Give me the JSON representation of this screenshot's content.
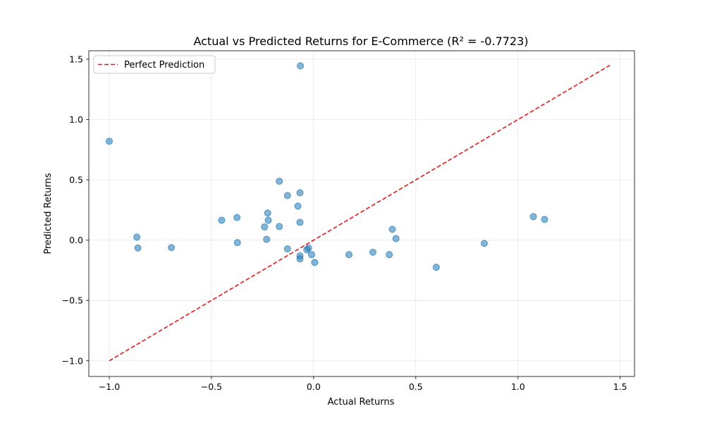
{
  "chart_data": {
    "type": "scatter",
    "title": "Actual vs Predicted Returns for E-Commerce (R² = -0.7723)",
    "xlabel": "Actual Returns",
    "ylabel": "Predicted Returns",
    "xlim": [
      -1.1,
      1.57
    ],
    "ylim": [
      -1.13,
      1.57
    ],
    "xticks": [
      -1.0,
      -0.5,
      0.0,
      0.5,
      1.0,
      1.5
    ],
    "xtick_labels": [
      "−1.0",
      "−0.5",
      "0.0",
      "0.5",
      "1.0",
      "1.5"
    ],
    "yticks": [
      -1.0,
      -0.5,
      0.0,
      0.5,
      1.0,
      1.5
    ],
    "ytick_labels": [
      "−1.0",
      "−0.5",
      "0.0",
      "0.5",
      "1.0",
      "1.5"
    ],
    "grid": true,
    "legend": {
      "position": "top-left",
      "entries": [
        "Perfect Prediction"
      ]
    },
    "reference_line": {
      "name": "Perfect Prediction",
      "color": "#e31a1c",
      "x": [
        -1.0,
        1.45
      ],
      "y": [
        -1.0,
        1.45
      ]
    },
    "series": [
      {
        "color": "#1f77b4",
        "points": [
          [
            -1.0,
            0.82
          ],
          [
            -0.865,
            0.025
          ],
          [
            -0.86,
            -0.065
          ],
          [
            -0.696,
            -0.062
          ],
          [
            -0.45,
            0.165
          ],
          [
            -0.375,
            0.188
          ],
          [
            -0.373,
            -0.02
          ],
          [
            -0.24,
            0.11
          ],
          [
            -0.23,
            0.007
          ],
          [
            -0.225,
            0.225
          ],
          [
            -0.222,
            0.165
          ],
          [
            -0.168,
            0.488
          ],
          [
            -0.168,
            0.113
          ],
          [
            -0.128,
            0.37
          ],
          [
            -0.128,
            -0.072
          ],
          [
            -0.077,
            0.282
          ],
          [
            -0.067,
            0.393
          ],
          [
            -0.067,
            0.148
          ],
          [
            -0.067,
            -0.13
          ],
          [
            -0.067,
            -0.155
          ],
          [
            -0.065,
            1.445
          ],
          [
            -0.033,
            -0.08
          ],
          [
            -0.025,
            -0.065
          ],
          [
            -0.01,
            -0.12
          ],
          [
            0.005,
            -0.185
          ],
          [
            0.173,
            -0.12
          ],
          [
            0.29,
            -0.1
          ],
          [
            0.37,
            -0.12
          ],
          [
            0.385,
            0.09
          ],
          [
            0.403,
            0.013
          ],
          [
            0.6,
            -0.225
          ],
          [
            0.835,
            -0.027
          ],
          [
            1.075,
            0.195
          ],
          [
            1.13,
            0.172
          ]
        ]
      }
    ]
  }
}
